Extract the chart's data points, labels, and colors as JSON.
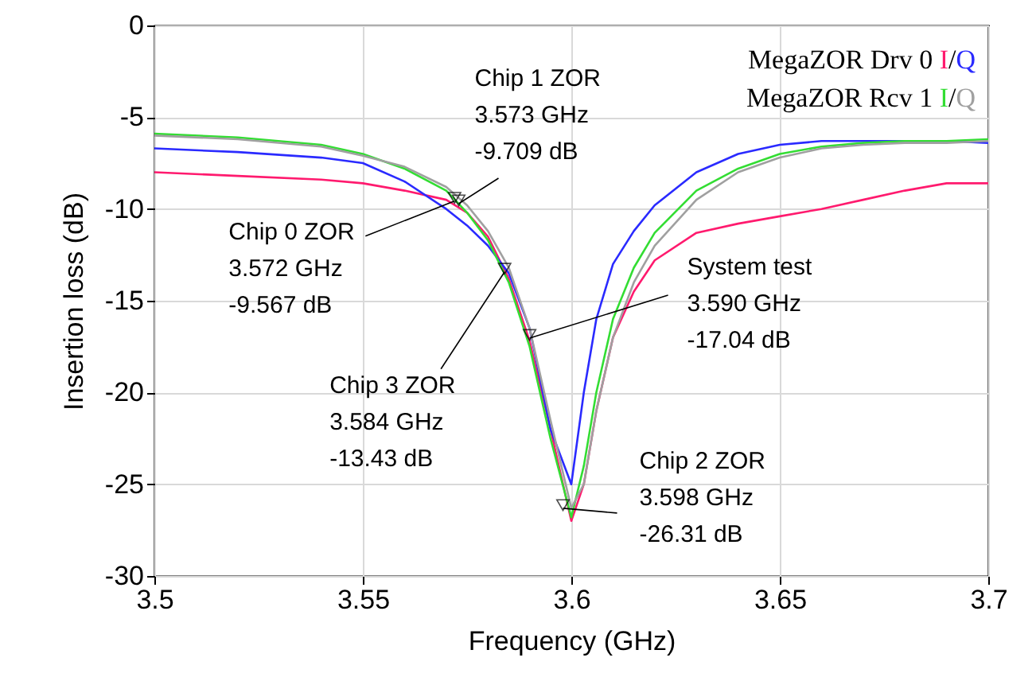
{
  "chart_data": {
    "type": "line",
    "xlabel": "Frequency (GHz)",
    "ylabel": "Insertion loss (dB)",
    "xlim": [
      3.5,
      3.7
    ],
    "xticks": [
      3.5,
      3.55,
      3.6,
      3.65,
      3.7
    ],
    "ylim": [
      -30,
      0
    ],
    "yticks": [
      -30,
      -25,
      -20,
      -15,
      -10,
      -5,
      0
    ],
    "grid": true,
    "legend": "top right",
    "x": [
      3.5,
      3.52,
      3.54,
      3.55,
      3.56,
      3.57,
      3.575,
      3.58,
      3.585,
      3.59,
      3.595,
      3.6,
      3.603,
      3.606,
      3.61,
      3.615,
      3.62,
      3.63,
      3.64,
      3.65,
      3.66,
      3.67,
      3.68,
      3.69,
      3.7
    ],
    "series": [
      {
        "name": "I",
        "color": "#ff1a6e",
        "values": [
          -8.0,
          -8.2,
          -8.4,
          -8.6,
          -9.0,
          -9.5,
          -10.2,
          -11.5,
          -13.8,
          -17.2,
          -22,
          -27.0,
          -25,
          -21,
          -17,
          -14.5,
          -12.8,
          -11.3,
          -10.8,
          -10.4,
          -10.0,
          -9.5,
          -9.0,
          -8.6,
          -8.6
        ]
      },
      {
        "name": "Q",
        "color": "#2a2aff",
        "values": [
          -6.7,
          -6.9,
          -7.2,
          -7.5,
          -8.5,
          -10.0,
          -10.9,
          -12.0,
          -13.5,
          -16.5,
          -22,
          -25,
          -20,
          -16,
          -13,
          -11.2,
          -9.8,
          -8.0,
          -7.0,
          -6.5,
          -6.3,
          -6.3,
          -6.3,
          -6.3,
          -6.4
        ]
      },
      {
        "name": "I",
        "color": "#33dd33",
        "values": [
          -5.9,
          -6.1,
          -6.5,
          -7.0,
          -7.8,
          -9.0,
          -10.2,
          -11.7,
          -14,
          -17.5,
          -22.5,
          -26.8,
          -24,
          -20,
          -16,
          -13.2,
          -11.3,
          -9,
          -7.8,
          -7.0,
          -6.6,
          -6.4,
          -6.3,
          -6.3,
          -6.2
        ]
      },
      {
        "name": "Q",
        "color": "#a0a0a0",
        "values": [
          -6.0,
          -6.2,
          -6.6,
          -7.1,
          -7.7,
          -8.8,
          -9.8,
          -11.2,
          -13.2,
          -16.5,
          -21.5,
          -26.3,
          -25,
          -21,
          -17,
          -14,
          -12,
          -9.5,
          -8,
          -7.2,
          -6.7,
          -6.5,
          -6.4,
          -6.4,
          -6.3
        ]
      }
    ],
    "annotations": [
      "MegaZOR Drv 0",
      "MegaZOR Rcv 1",
      "/",
      {
        "text": "Chip 0 ZOR\n3.572 GHz\n-9.567 dB",
        "x": 3.572,
        "y": -9.567
      },
      {
        "text": "Chip 1 ZOR\n3.573 GHz\n-9.709 dB",
        "x": 3.573,
        "y": -9.709
      },
      {
        "text": "Chip 3 ZOR\n3.584 GHz\n-13.43 dB",
        "x": 3.584,
        "y": -13.43
      },
      {
        "text": "System test\n3.590 GHz\n-17.04 dB",
        "x": 3.59,
        "y": -17.04
      },
      {
        "text": "Chip 2 ZOR\n3.598 GHz\n-26.31 dB",
        "x": 3.598,
        "y": -26.31
      }
    ]
  }
}
